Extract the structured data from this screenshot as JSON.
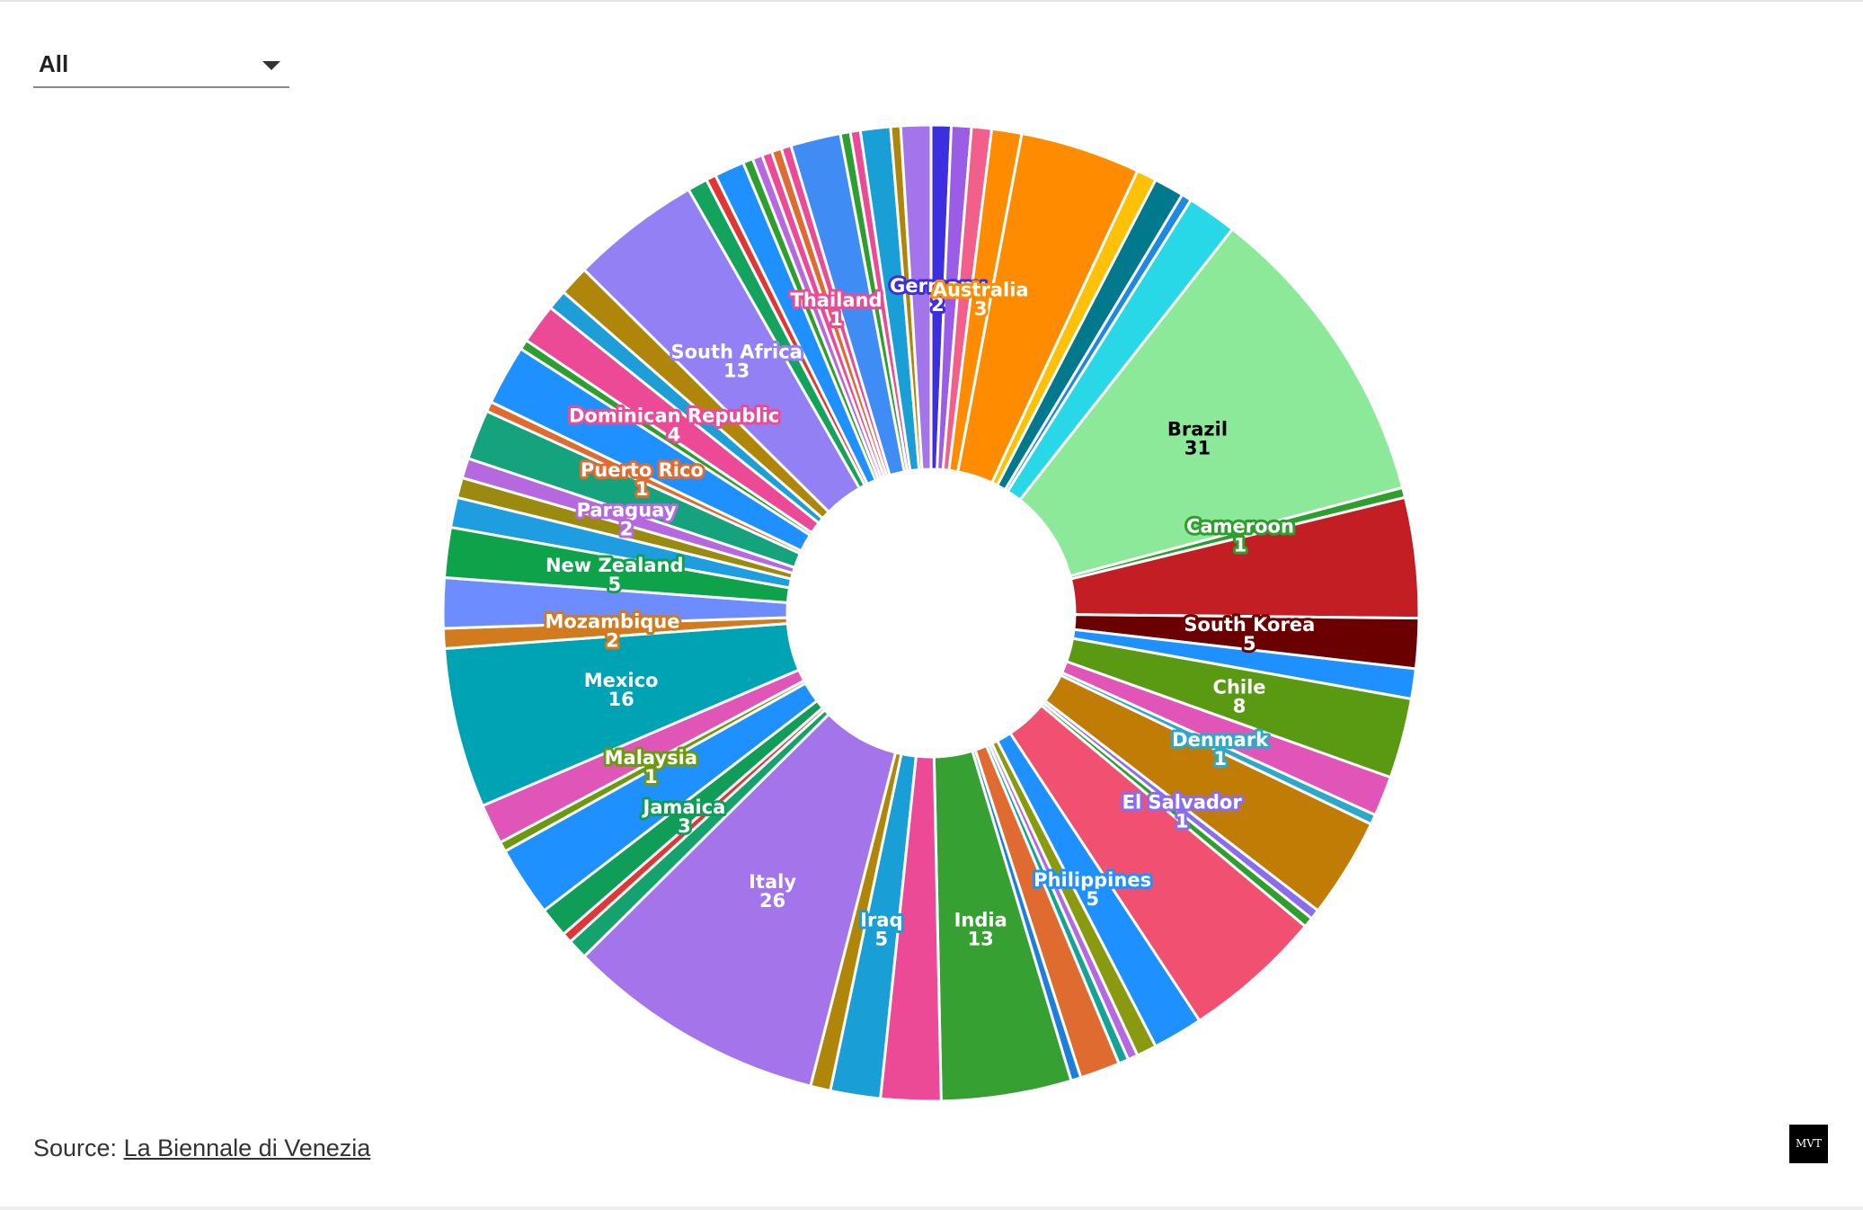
{
  "filter": {
    "selected": "All"
  },
  "source": {
    "prefix": "Source: ",
    "link_text": "La Biennale di Venezia"
  },
  "logo": {
    "text": "MVT"
  },
  "chart_data": {
    "type": "pie",
    "donut": true,
    "legend": "none",
    "slices": [
      {
        "label": "Germany",
        "value": 2,
        "color": "#3b2fe0",
        "labeled": true
      },
      {
        "label": "",
        "value": 2,
        "color": "#9b5de5"
      },
      {
        "label": "",
        "value": 2,
        "color": "#f25f8a"
      },
      {
        "label": "Australia",
        "value": 3,
        "color": "#ff8c00",
        "labeled": true
      },
      {
        "label": "",
        "value": 12,
        "color": "#ff8c00"
      },
      {
        "label": "",
        "value": 2,
        "color": "#ffc107"
      },
      {
        "label": "",
        "value": 3,
        "color": "#00798c"
      },
      {
        "label": "",
        "value": 1,
        "color": "#1e88e5"
      },
      {
        "label": "",
        "value": 5,
        "color": "#29d8e6"
      },
      {
        "label": "Brazil",
        "value": 31,
        "color": "#8ce99a",
        "labeled": true,
        "text_color": "#000000"
      },
      {
        "label": "Cameroon",
        "value": 1,
        "color": "#2e9e2e",
        "labeled": true
      },
      {
        "label": "",
        "value": 12,
        "color": "#c21e24"
      },
      {
        "label": "South Korea",
        "value": 5,
        "color": "#6b0000",
        "labeled": true
      },
      {
        "label": "",
        "value": 3,
        "color": "#1e90ff"
      },
      {
        "label": "Chile",
        "value": 8,
        "color": "#5a9a12",
        "labeled": true
      },
      {
        "label": "",
        "value": 4,
        "color": "#e255b8"
      },
      {
        "label": "Denmark",
        "value": 1,
        "color": "#2ea8c8",
        "labeled": true
      },
      {
        "label": "",
        "value": 10,
        "color": "#c17c06"
      },
      {
        "label": "El Salvador",
        "value": 1,
        "color": "#8a6cf0",
        "labeled": true
      },
      {
        "label": "",
        "value": 1,
        "color": "#2e9e2e"
      },
      {
        "label": "",
        "value": 14,
        "color": "#f25070"
      },
      {
        "label": "Philippines",
        "value": 5,
        "color": "#1e90ff",
        "labeled": true
      },
      {
        "label": "",
        "value": 2,
        "color": "#8a9a10"
      },
      {
        "label": "",
        "value": 1,
        "color": "#b668e0"
      },
      {
        "label": "",
        "value": 1,
        "color": "#14a396"
      },
      {
        "label": "",
        "value": 4,
        "color": "#e06b30"
      },
      {
        "label": "",
        "value": 1,
        "color": "#1e7ee0"
      },
      {
        "label": "India",
        "value": 13,
        "color": "#36a033",
        "labeled": true
      },
      {
        "label": "",
        "value": 6,
        "color": "#ec4a96"
      },
      {
        "label": "Iraq",
        "value": 5,
        "color": "#1a9ed6",
        "labeled": true
      },
      {
        "label": "",
        "value": 2,
        "color": "#b0860a"
      },
      {
        "label": "Italy",
        "value": 26,
        "color": "#a374ea",
        "labeled": true
      },
      {
        "label": "",
        "value": 2,
        "color": "#14a36c"
      },
      {
        "label": "",
        "value": 1,
        "color": "#e23636"
      },
      {
        "label": "Jamaica",
        "value": 3,
        "color": "#0f9d58",
        "labeled": true
      },
      {
        "label": "",
        "value": 7,
        "color": "#1e90ff"
      },
      {
        "label": "Malaysia",
        "value": 1,
        "color": "#6b9a10",
        "labeled": true
      },
      {
        "label": "",
        "value": 4,
        "color": "#e055b8"
      },
      {
        "label": "Mexico",
        "value": 16,
        "color": "#00a3b4",
        "labeled": true
      },
      {
        "label": "Mozambique",
        "value": 2,
        "color": "#d17a1e",
        "labeled": true
      },
      {
        "label": "",
        "value": 5,
        "color": "#6c8cff"
      },
      {
        "label": "New Zealand",
        "value": 5,
        "color": "#0ea34a",
        "labeled": true
      },
      {
        "label": "",
        "value": 3,
        "color": "#1e9ee0"
      },
      {
        "label": "",
        "value": 2,
        "color": "#9a8a10"
      },
      {
        "label": "Paraguay",
        "value": 2,
        "color": "#b668e0",
        "labeled": true
      },
      {
        "label": "",
        "value": 5,
        "color": "#14a37c"
      },
      {
        "label": "Puerto Rico",
        "value": 1,
        "color": "#e06b30",
        "labeled": true
      },
      {
        "label": "",
        "value": 6,
        "color": "#1e90ff"
      },
      {
        "label": "",
        "value": 1,
        "color": "#2e9e2e"
      },
      {
        "label": "Dominican Republic",
        "value": 4,
        "color": "#ec4a96",
        "labeled": true
      },
      {
        "label": "",
        "value": 2,
        "color": "#1e9ed6"
      },
      {
        "label": "",
        "value": 3,
        "color": "#b0860a"
      },
      {
        "label": "South Africa",
        "value": 13,
        "color": "#9480f5",
        "labeled": true
      },
      {
        "label": "",
        "value": 2,
        "color": "#14a35c"
      },
      {
        "label": "",
        "value": 1,
        "color": "#e23636"
      },
      {
        "label": "",
        "value": 3,
        "color": "#1e90ff"
      },
      {
        "label": "",
        "value": 1,
        "color": "#2e9e2e"
      },
      {
        "label": "",
        "value": 1,
        "color": "#b668e0"
      },
      {
        "label": "",
        "value": 1,
        "color": "#ec4a96"
      },
      {
        "label": "",
        "value": 1,
        "color": "#e06b30"
      },
      {
        "label": "Thailand",
        "value": 1,
        "color": "#ec4a96",
        "labeled": true
      },
      {
        "label": "",
        "value": 5,
        "color": "#3f8cf5"
      },
      {
        "label": "",
        "value": 1,
        "color": "#2e9e2e"
      },
      {
        "label": "",
        "value": 1,
        "color": "#ec4a96"
      },
      {
        "label": "",
        "value": 3,
        "color": "#1a9ed6"
      },
      {
        "label": "",
        "value": 1,
        "color": "#b0860a"
      },
      {
        "label": "",
        "value": 3,
        "color": "#a374ea"
      }
    ]
  }
}
